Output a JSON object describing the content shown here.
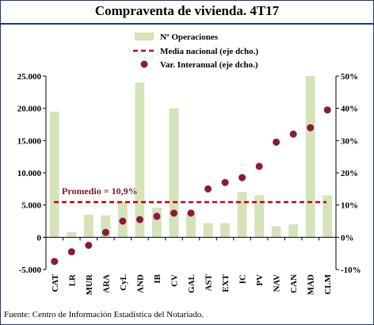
{
  "header": {
    "title": "Compraventa de vivienda. 4T17"
  },
  "footer": {
    "source": "Fuente: Centro de Información Estadística del Notariado."
  },
  "colors": {
    "bar": "#d5e3b9",
    "media_line": "#c00000",
    "dot": "#8b1a3a",
    "frame": "#1f3a6b"
  },
  "chart_data": {
    "type": "bar",
    "categories": [
      "CAT",
      "LR",
      "MUR",
      "ARA",
      "CyL",
      "AND",
      "IB",
      "CV",
      "GAL",
      "AST",
      "EXT",
      "IC",
      "PV",
      "NAV",
      "CAN",
      "MAD",
      "CLM"
    ],
    "series": [
      {
        "name": "Nº Operaciones",
        "axis": "left",
        "type": "bar",
        "values": [
          19500,
          800,
          3500,
          3400,
          5500,
          24000,
          4600,
          20000,
          3700,
          2200,
          2200,
          7000,
          6500,
          1700,
          2000,
          25000,
          6500
        ]
      },
      {
        "name": "Var. Interanual (eje dcho.)",
        "axis": "right",
        "type": "scatter",
        "values": [
          -7.5,
          -4.5,
          -2.5,
          1.5,
          5,
          5.5,
          6.5,
          7.5,
          7.5,
          15,
          17,
          18.5,
          22,
          29.5,
          32,
          34,
          39.5
        ]
      },
      {
        "name": "Media nacional (eje dcho.)",
        "axis": "right",
        "type": "line",
        "value": 10.9
      }
    ],
    "left_axis": {
      "ylim": [
        -5000,
        25000
      ],
      "ticks": [
        "-5.000",
        "0",
        "5.000",
        "10.000",
        "15.000",
        "20.000",
        "25.000"
      ]
    },
    "right_axis": {
      "ylim": [
        -10,
        50
      ],
      "ticks": [
        "-10%",
        "0%",
        "10%",
        "20%",
        "30%",
        "40%",
        "50%"
      ]
    },
    "annotation": "Promedio = 10,9%",
    "legend_position": "top-right",
    "grid": false
  }
}
